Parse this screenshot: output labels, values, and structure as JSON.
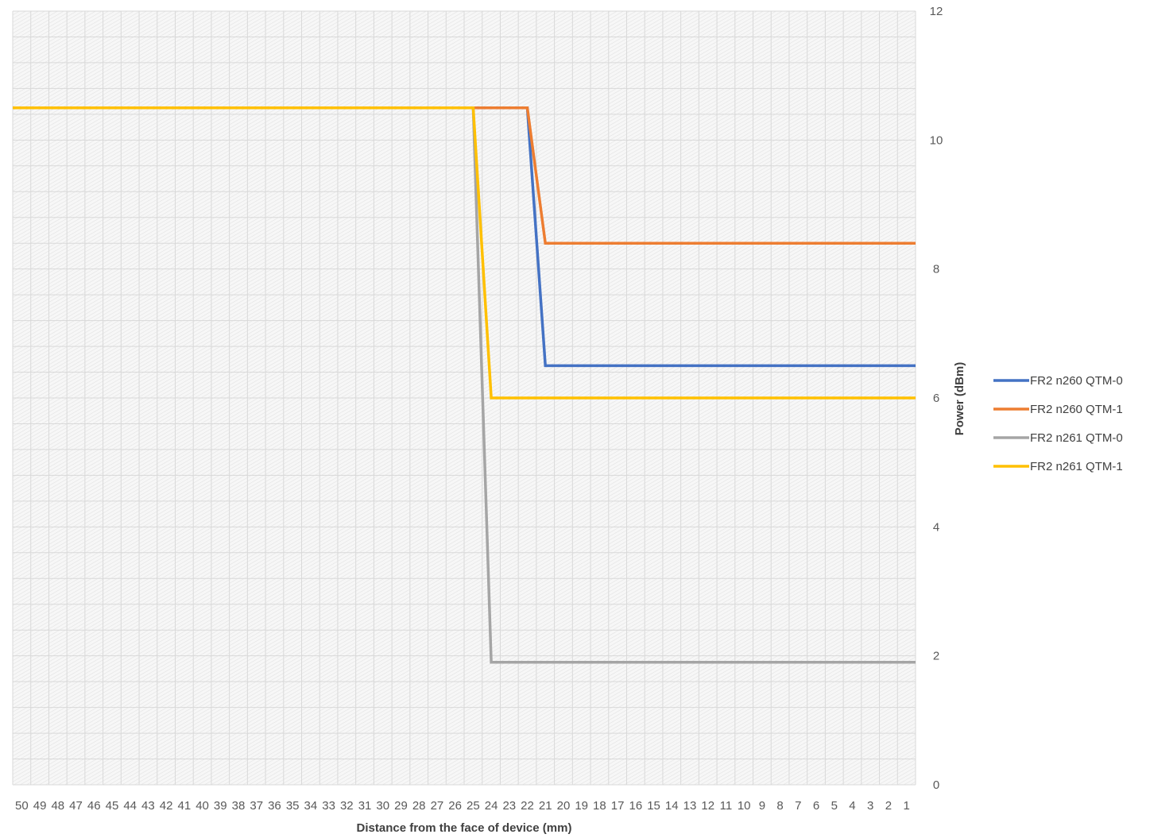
{
  "chart_data": {
    "type": "line",
    "xlabel": "Distance from the face of device (mm)",
    "ylabel": "Power (dBm)",
    "categories": [
      "50",
      "49",
      "48",
      "47",
      "46",
      "45",
      "44",
      "43",
      "42",
      "41",
      "40",
      "39",
      "38",
      "37",
      "36",
      "35",
      "34",
      "33",
      "32",
      "31",
      "30",
      "29",
      "28",
      "27",
      "26",
      "25",
      "24",
      "23",
      "22",
      "21",
      "20",
      "19",
      "18",
      "17",
      "16",
      "15",
      "14",
      "13",
      "12",
      "11",
      "10",
      "9",
      "8",
      "7",
      "6",
      "5",
      "4",
      "3",
      "2",
      "1"
    ],
    "x_axis_reversed": true,
    "ylim": [
      0,
      12
    ],
    "y_ticks": [
      0,
      2,
      4,
      6,
      8,
      10,
      12
    ],
    "y_axis_position": "right",
    "grid": true,
    "legend_position": "right",
    "series": [
      {
        "name": "FR2 n260 QTM-0",
        "color": "#4472C4",
        "values": [
          10.5,
          10.5,
          10.5,
          10.5,
          10.5,
          10.5,
          10.5,
          10.5,
          10.5,
          10.5,
          10.5,
          10.5,
          10.5,
          10.5,
          10.5,
          10.5,
          10.5,
          10.5,
          10.5,
          10.5,
          10.5,
          10.5,
          10.5,
          10.5,
          10.5,
          10.5,
          10.5,
          10.5,
          10.5,
          6.5,
          6.5,
          6.5,
          6.5,
          6.5,
          6.5,
          6.5,
          6.5,
          6.5,
          6.5,
          6.5,
          6.5,
          6.5,
          6.5,
          6.5,
          6.5,
          6.5,
          6.5,
          6.5,
          6.5,
          6.5
        ]
      },
      {
        "name": "FR2 n260 QTM-1",
        "color": "#ED7D31",
        "values": [
          10.5,
          10.5,
          10.5,
          10.5,
          10.5,
          10.5,
          10.5,
          10.5,
          10.5,
          10.5,
          10.5,
          10.5,
          10.5,
          10.5,
          10.5,
          10.5,
          10.5,
          10.5,
          10.5,
          10.5,
          10.5,
          10.5,
          10.5,
          10.5,
          10.5,
          10.5,
          10.5,
          10.5,
          10.5,
          8.4,
          8.4,
          8.4,
          8.4,
          8.4,
          8.4,
          8.4,
          8.4,
          8.4,
          8.4,
          8.4,
          8.4,
          8.4,
          8.4,
          8.4,
          8.4,
          8.4,
          8.4,
          8.4,
          8.4,
          8.4
        ]
      },
      {
        "name": "FR2 n261 QTM-0",
        "color": "#A5A5A5",
        "values": [
          10.5,
          10.5,
          10.5,
          10.5,
          10.5,
          10.5,
          10.5,
          10.5,
          10.5,
          10.5,
          10.5,
          10.5,
          10.5,
          10.5,
          10.5,
          10.5,
          10.5,
          10.5,
          10.5,
          10.5,
          10.5,
          10.5,
          10.5,
          10.5,
          10.5,
          10.5,
          1.9,
          1.9,
          1.9,
          1.9,
          1.9,
          1.9,
          1.9,
          1.9,
          1.9,
          1.9,
          1.9,
          1.9,
          1.9,
          1.9,
          1.9,
          1.9,
          1.9,
          1.9,
          1.9,
          1.9,
          1.9,
          1.9,
          1.9,
          1.9
        ]
      },
      {
        "name": "FR2 n261 QTM-1",
        "color": "#FFC000",
        "values": [
          10.5,
          10.5,
          10.5,
          10.5,
          10.5,
          10.5,
          10.5,
          10.5,
          10.5,
          10.5,
          10.5,
          10.5,
          10.5,
          10.5,
          10.5,
          10.5,
          10.5,
          10.5,
          10.5,
          10.5,
          10.5,
          10.5,
          10.5,
          10.5,
          10.5,
          10.5,
          6.0,
          6.0,
          6.0,
          6.0,
          6.0,
          6.0,
          6.0,
          6.0,
          6.0,
          6.0,
          6.0,
          6.0,
          6.0,
          6.0,
          6.0,
          6.0,
          6.0,
          6.0,
          6.0,
          6.0,
          6.0,
          6.0,
          6.0,
          6.0
        ]
      }
    ]
  }
}
